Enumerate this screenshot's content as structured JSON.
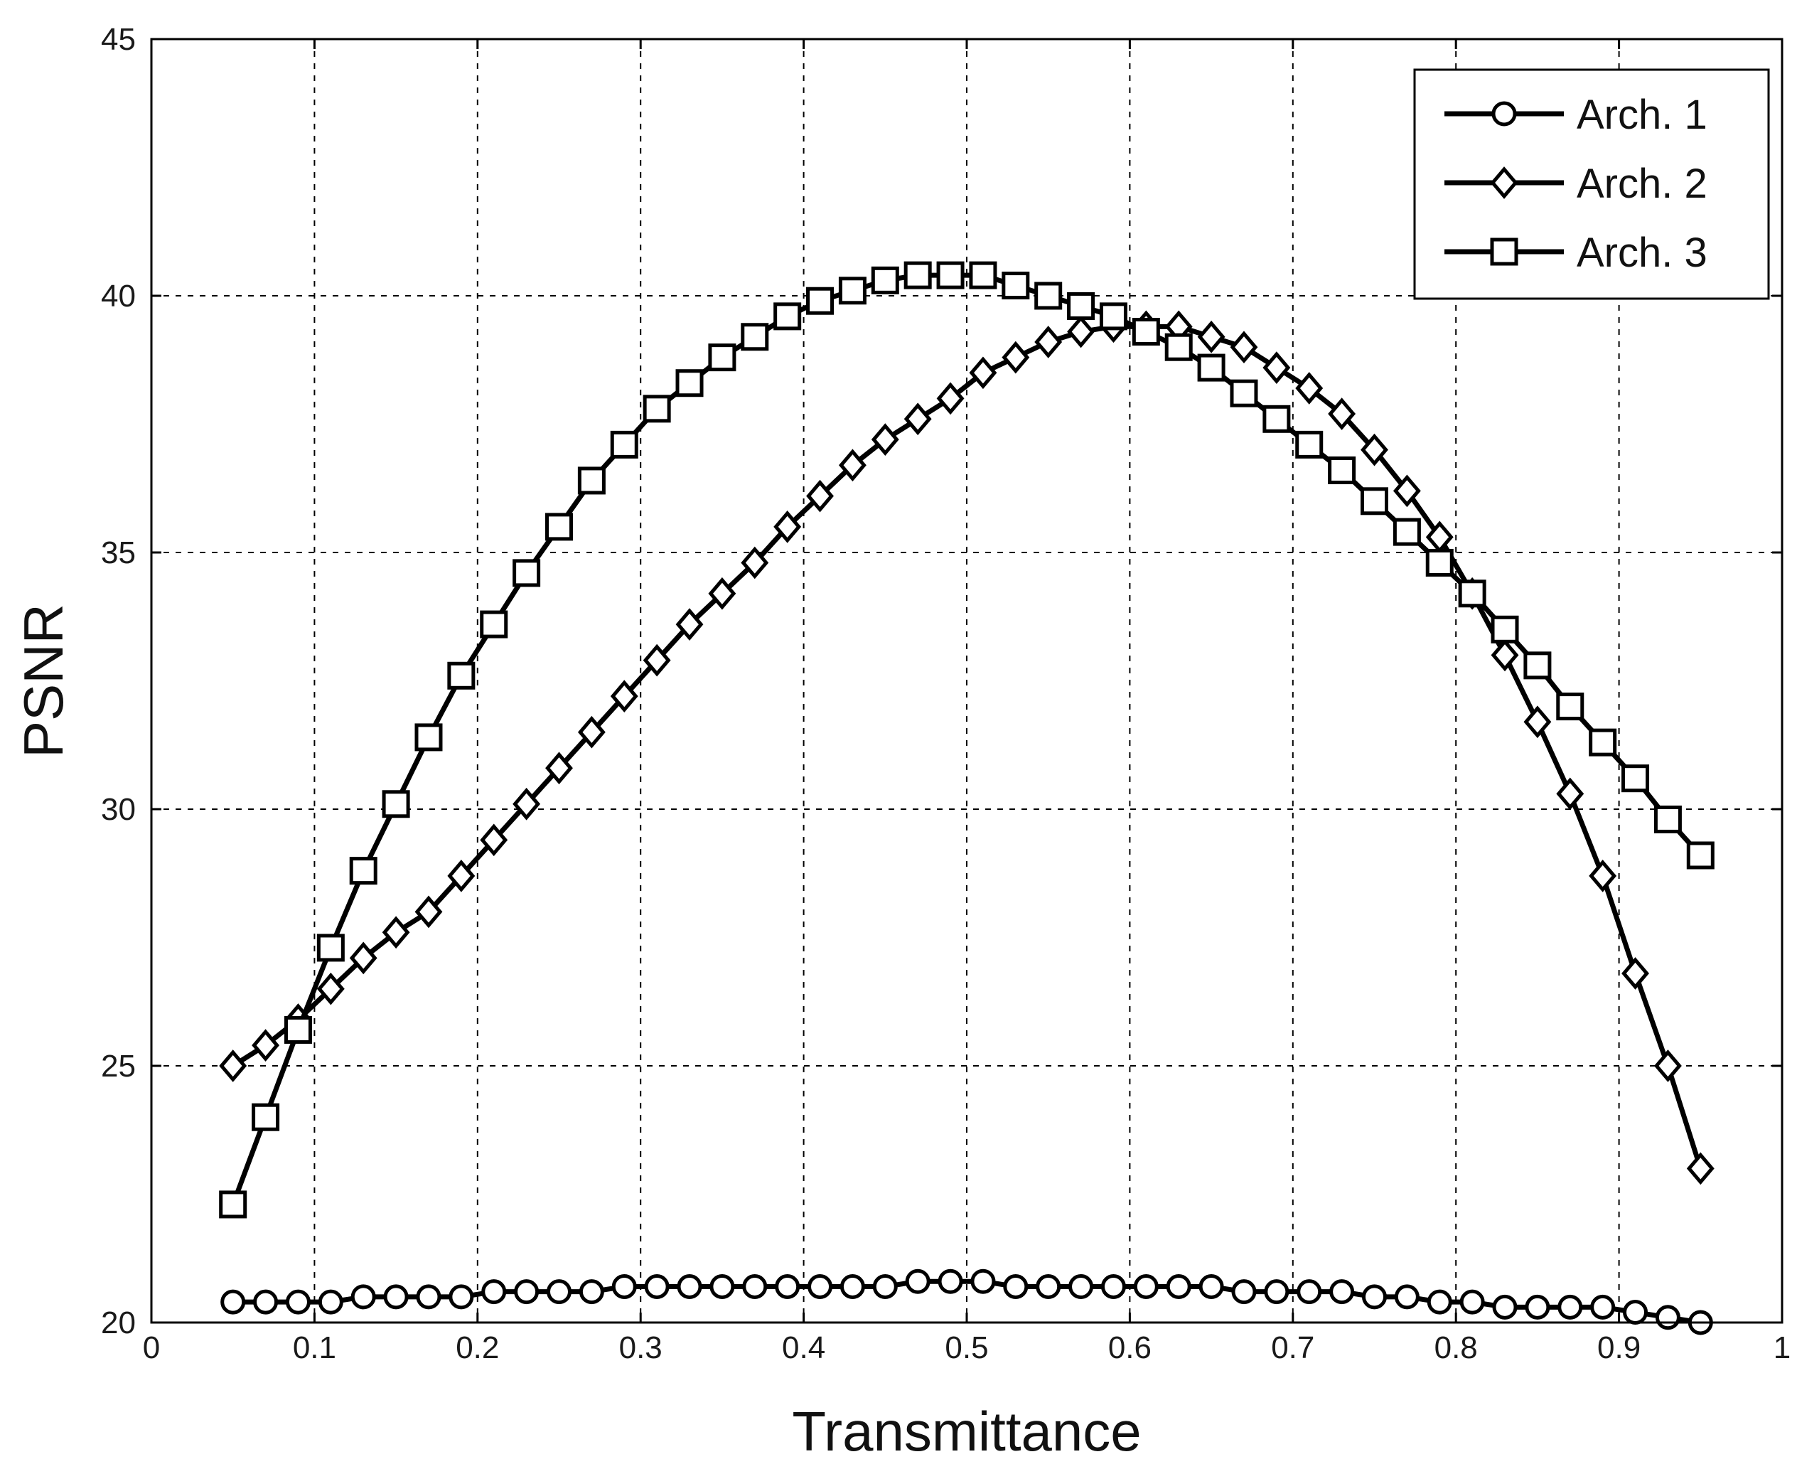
{
  "chart_data": {
    "type": "line",
    "title": "",
    "xlabel": "Transmittance",
    "ylabel": "PSNR",
    "xlim": [
      0,
      1
    ],
    "ylim": [
      20,
      45
    ],
    "xticks": [
      "0",
      "0.1",
      "0.2",
      "0.3",
      "0.4",
      "0.5",
      "0.6",
      "0.7",
      "0.8",
      "0.9",
      "1"
    ],
    "yticks": [
      "20",
      "25",
      "30",
      "35",
      "40",
      "45"
    ],
    "grid": true,
    "legend_position": "top-right",
    "x": [
      0.05,
      0.07,
      0.09,
      0.11,
      0.13,
      0.15,
      0.17,
      0.19,
      0.21,
      0.23,
      0.25,
      0.27,
      0.29,
      0.31,
      0.33,
      0.35,
      0.37,
      0.39,
      0.41,
      0.43,
      0.45,
      0.47,
      0.49,
      0.51,
      0.53,
      0.55,
      0.57,
      0.59,
      0.61,
      0.63,
      0.65,
      0.67,
      0.69,
      0.71,
      0.73,
      0.75,
      0.77,
      0.79,
      0.81,
      0.83,
      0.85,
      0.87,
      0.89,
      0.91,
      0.93,
      0.95
    ],
    "series": [
      {
        "name": "Arch. 1",
        "marker": "circle",
        "color": "#000000",
        "values": [
          20.4,
          20.4,
          20.4,
          20.4,
          20.5,
          20.5,
          20.5,
          20.5,
          20.6,
          20.6,
          20.6,
          20.6,
          20.7,
          20.7,
          20.7,
          20.7,
          20.7,
          20.7,
          20.7,
          20.7,
          20.7,
          20.8,
          20.8,
          20.8,
          20.7,
          20.7,
          20.7,
          20.7,
          20.7,
          20.7,
          20.7,
          20.6,
          20.6,
          20.6,
          20.6,
          20.5,
          20.5,
          20.4,
          20.4,
          20.3,
          20.3,
          20.3,
          20.3,
          20.2,
          20.1,
          20.0
        ]
      },
      {
        "name": "Arch. 2",
        "marker": "diamond",
        "color": "#000000",
        "values": [
          25.0,
          25.4,
          25.9,
          26.5,
          27.1,
          27.6,
          28.0,
          28.7,
          29.4,
          30.1,
          30.8,
          31.5,
          32.2,
          32.9,
          33.6,
          34.2,
          34.8,
          35.5,
          36.1,
          36.7,
          37.2,
          37.6,
          38.0,
          38.5,
          38.8,
          39.1,
          39.3,
          39.4,
          39.4,
          39.4,
          39.2,
          39.0,
          38.6,
          38.2,
          37.7,
          37.0,
          36.2,
          35.3,
          34.2,
          33.0,
          31.7,
          30.3,
          28.7,
          26.8,
          25.0,
          23.0
        ]
      },
      {
        "name": "Arch. 3",
        "marker": "square",
        "color": "#000000",
        "values": [
          22.3,
          24.0,
          25.7,
          27.3,
          28.8,
          30.1,
          31.4,
          32.6,
          33.6,
          34.6,
          35.5,
          36.4,
          37.1,
          37.8,
          38.3,
          38.8,
          39.2,
          39.6,
          39.9,
          40.1,
          40.3,
          40.4,
          40.4,
          40.4,
          40.2,
          40.0,
          39.8,
          39.6,
          39.3,
          39.0,
          38.6,
          38.1,
          37.6,
          37.1,
          36.6,
          36.0,
          35.4,
          34.8,
          34.2,
          33.5,
          32.8,
          32.0,
          31.3,
          30.6,
          29.8,
          29.1
        ]
      }
    ]
  }
}
